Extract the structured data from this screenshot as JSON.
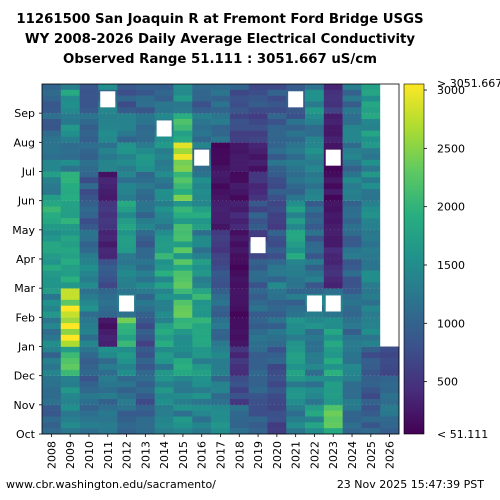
{
  "title": {
    "line1": "11261500 San Joaquin R at Fremont Ford Bridge USGS",
    "line2": "WY 2008-2026 Daily Average Electrical Conductivity",
    "line3": "Observed Range 51.111 : 3051.667 uS/cm"
  },
  "footer": {
    "source_url": "www.cbr.washington.edu/sacramento/",
    "timestamp": "23 Nov 2025 15:47:39 PST"
  },
  "chart_data": {
    "type": "heatmap",
    "x_categories": [
      "2008",
      "2009",
      "2010",
      "2011",
      "2012",
      "2013",
      "2014",
      "2015",
      "2016",
      "2017",
      "2018",
      "2019",
      "2020",
      "2021",
      "2022",
      "2023",
      "2024",
      "2025",
      "2026"
    ],
    "y_categories": [
      "Oct",
      "Nov",
      "Dec",
      "Jan",
      "Feb",
      "Mar",
      "Apr",
      "May",
      "Jun",
      "Jul",
      "Aug",
      "Sep"
    ],
    "colorbar": {
      "min": 51.111,
      "max": 3051.667,
      "ticks": [
        500,
        1000,
        1500,
        2000,
        2500,
        3000
      ],
      "min_label": "< 51.111",
      "max_label": "> 3051.667",
      "colormap": "viridis"
    },
    "approx_monthly_values": [
      [
        1000,
        1100,
        1150,
        1300,
        1500,
        1700,
        1600,
        1800,
        1500,
        1200,
        1100,
        1000
      ],
      [
        1400,
        1500,
        1900,
        2800,
        2600,
        1700,
        1700,
        1900,
        1700,
        1400,
        1400,
        1600
      ],
      [
        1200,
        1100,
        1000,
        1150,
        1300,
        1300,
        1100,
        1000,
        900,
        1000,
        1100,
        800
      ],
      [
        1100,
        1200,
        1300,
        300,
        1000,
        900,
        400,
        500,
        300,
        1200,
        1300,
        1300
      ],
      [
        1000,
        1100,
        1600,
        2100,
        1400,
        1300,
        1500,
        1600,
        1300,
        1400,
        1200,
        900
      ],
      [
        1100,
        900,
        1000,
        800,
        1100,
        1200,
        1000,
        1200,
        1200,
        1400,
        1300,
        1000
      ],
      [
        1300,
        1400,
        1500,
        1600,
        1600,
        1700,
        1800,
        1500,
        1400,
        1500,
        1300,
        1100
      ],
      [
        1400,
        1500,
        1700,
        1800,
        2000,
        2200,
        2000,
        1900,
        2200,
        2600,
        1900,
        1500
      ],
      [
        1300,
        1400,
        1600,
        1700,
        1800,
        1500,
        1400,
        1700,
        1400,
        1200,
        1100,
        900
      ],
      [
        1600,
        1300,
        1200,
        1100,
        1000,
        800,
        600,
        300,
        200,
        150,
        1100,
        1100
      ],
      [
        1000,
        700,
        500,
        200,
        150,
        150,
        200,
        300,
        200,
        300,
        700,
        800
      ],
      [
        900,
        1000,
        1000,
        1100,
        1000,
        900,
        700,
        800,
        500,
        300,
        700,
        900
      ],
      [
        700,
        800,
        900,
        1000,
        1100,
        1200,
        900,
        700,
        800,
        1000,
        900,
        900
      ],
      [
        1300,
        1500,
        1700,
        1400,
        1100,
        1300,
        1700,
        1500,
        1200,
        1100,
        1000,
        900
      ],
      [
        1600,
        1400,
        1200,
        1300,
        1200,
        1100,
        1000,
        1000,
        1300,
        1400,
        1300,
        1400
      ],
      [
        2300,
        1800,
        1700,
        1600,
        1200,
        400,
        300,
        200,
        200,
        150,
        300,
        500
      ],
      [
        1100,
        1200,
        1300,
        1100,
        1000,
        1000,
        1100,
        1200,
        1300,
        1200,
        1300,
        1200
      ],
      [
        1000,
        900,
        900,
        1300,
        1200,
        1300,
        1400,
        1300,
        1400,
        1500,
        1600,
        1700
      ],
      [
        1200,
        1100,
        700,
        null,
        null,
        null,
        null,
        null,
        null,
        null,
        null,
        null
      ]
    ],
    "blank_gaps": [
      {
        "x": "2011",
        "month": "Sep"
      },
      {
        "x": "2012",
        "month": "Feb"
      },
      {
        "x": "2014",
        "month": "Aug"
      },
      {
        "x": "2016",
        "month": "Jul"
      },
      {
        "x": "2019",
        "month": "Apr"
      },
      {
        "x": "2021",
        "month": "Sep"
      },
      {
        "x": "2022",
        "month": "Feb"
      },
      {
        "x": "2023",
        "month": "Feb"
      },
      {
        "x": "2023",
        "month": "Jul"
      }
    ]
  }
}
